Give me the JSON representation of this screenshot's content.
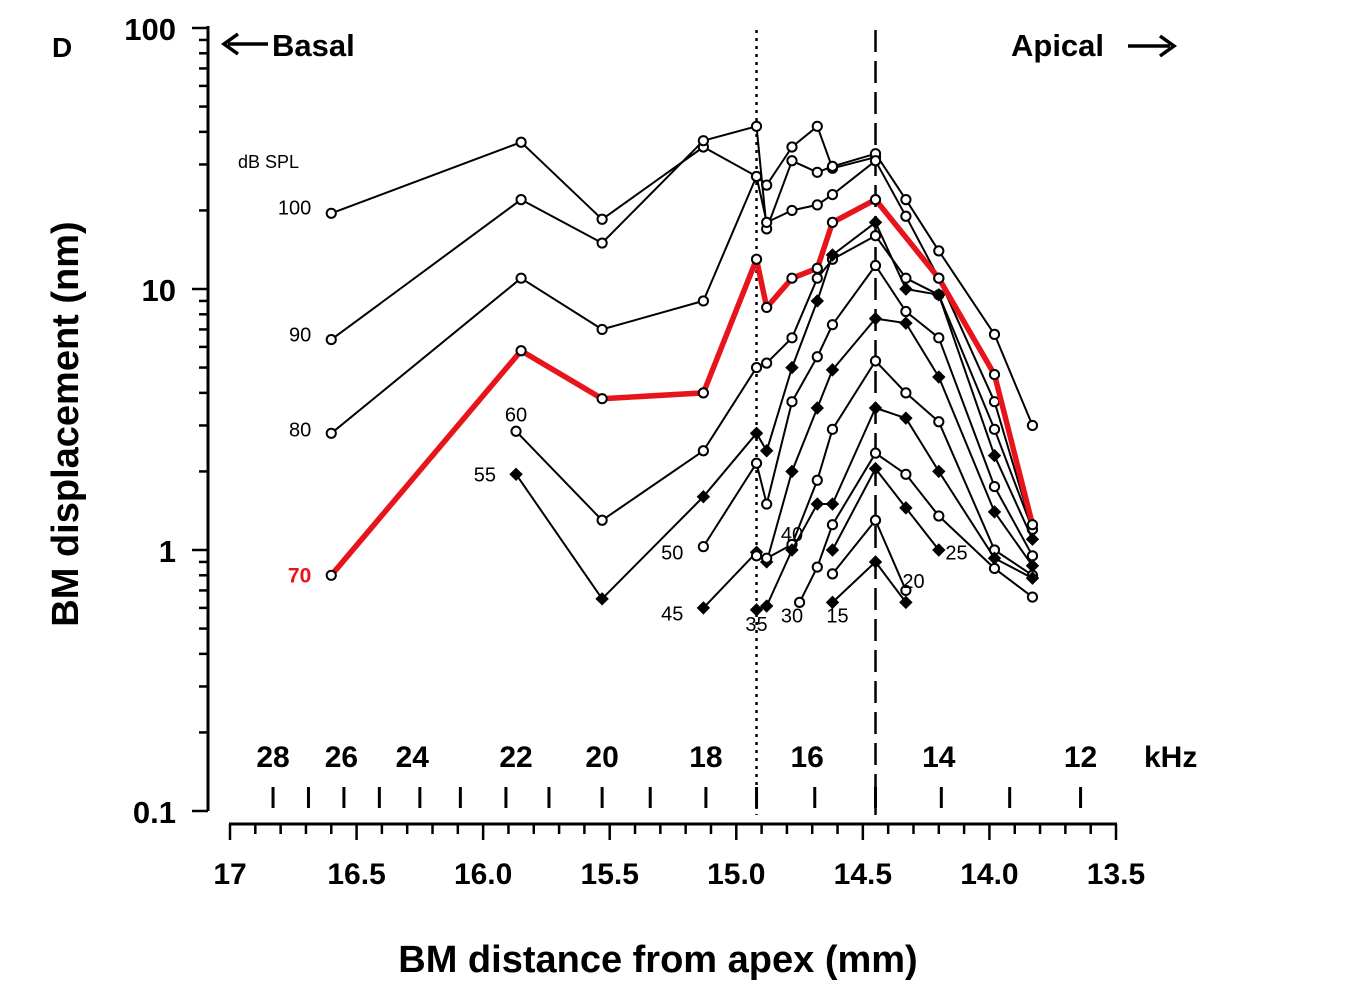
{
  "chart_data": {
    "type": "line",
    "panel_label": "D",
    "xlabel": "BM distance from apex (mm)",
    "ylabel": "BM displacement (nm)",
    "x_direction": "reversed",
    "xlim": [
      17.0,
      13.5
    ],
    "ylim": [
      0.1,
      100
    ],
    "y_scale": "log",
    "x_ticks": [
      "17",
      "16.5",
      "16.0",
      "15.5",
      "15.0",
      "14.5",
      "14.0",
      "13.5"
    ],
    "y_ticks": [
      "0.1",
      "1",
      "10",
      "100"
    ],
    "basal_label": "Basal",
    "apical_label": "Apical",
    "level_header": "dB SPL",
    "highlight_level": "70",
    "highlight_color": "#e8141b",
    "freq_axis": {
      "unit": "kHz",
      "labels": [
        {
          "text": "28",
          "x": 16.83
        },
        {
          "text": "26",
          "x": 16.56
        },
        {
          "text": "24",
          "x": 16.28
        },
        {
          "text": "22",
          "x": 15.87
        },
        {
          "text": "20",
          "x": 15.53
        },
        {
          "text": "18",
          "x": 15.12
        },
        {
          "text": "16",
          "x": 14.72
        },
        {
          "text": "14",
          "x": 14.2
        },
        {
          "text": "12",
          "x": 13.64
        }
      ],
      "ticks": [
        16.83,
        16.69,
        16.55,
        16.41,
        16.25,
        16.09,
        15.91,
        15.74,
        15.53,
        15.34,
        15.12,
        14.92,
        14.69,
        14.45,
        14.19,
        13.92,
        13.64
      ]
    },
    "ref_lines": [
      {
        "style": "dotted",
        "x": 14.92
      },
      {
        "style": "dashed",
        "x": 14.45
      }
    ],
    "series": [
      {
        "name": "100",
        "marker": "circle",
        "x": [
          16.6,
          15.85,
          15.53,
          15.13,
          14.92,
          14.88,
          14.78,
          14.68,
          14.62,
          14.45
        ],
        "y": [
          19.5,
          36.5,
          18.5,
          35,
          27,
          25,
          35,
          42,
          29,
          32
        ]
      },
      {
        "name": "90",
        "marker": "circle",
        "x": [
          16.6,
          15.85,
          15.53,
          15.13,
          14.92,
          14.88,
          14.78,
          14.68,
          14.62,
          14.45,
          14.33,
          14.2,
          13.98,
          13.83
        ],
        "y": [
          6.4,
          22,
          15,
          37,
          42,
          17,
          31,
          28,
          29.5,
          33,
          22,
          14,
          6.7,
          3.0
        ]
      },
      {
        "name": "80",
        "marker": "circle",
        "x": [
          16.6,
          15.85,
          15.53,
          15.13,
          14.92,
          14.88,
          14.78,
          14.68,
          14.62,
          14.45,
          14.33,
          14.2,
          13.98,
          13.83
        ],
        "y": [
          2.8,
          11,
          7,
          9,
          27,
          18,
          20,
          21,
          23,
          31,
          19,
          11,
          3.7,
          1.2
        ]
      },
      {
        "name": "70",
        "marker": "circle",
        "highlight": true,
        "x": [
          16.6,
          15.85,
          15.53,
          15.13,
          14.92,
          14.88,
          14.78,
          14.68,
          14.62,
          14.45,
          14.2,
          13.98,
          13.83
        ],
        "y": [
          0.8,
          5.8,
          3.8,
          4.0,
          13,
          8.5,
          11,
          12,
          18,
          22,
          11,
          4.7,
          1.25
        ]
      },
      {
        "name": "60",
        "marker": "circle",
        "x": [
          15.87,
          15.53,
          15.13,
          14.92,
          14.88,
          14.78,
          14.68,
          14.62,
          14.45,
          14.33,
          14.2,
          13.98,
          13.83
        ],
        "y": [
          2.85,
          1.3,
          2.4,
          5.0,
          5.2,
          6.5,
          11,
          13,
          16,
          11,
          9.5,
          2.9,
          1.2
        ]
      },
      {
        "name": "55",
        "marker": "diamond",
        "x": [
          15.87,
          15.53,
          15.13,
          14.92,
          14.88,
          14.78,
          14.68,
          14.62,
          14.45,
          14.33,
          14.2,
          13.98,
          13.83
        ],
        "y": [
          1.95,
          0.65,
          1.6,
          2.8,
          2.4,
          5.0,
          9.0,
          13.5,
          18,
          10,
          9.5,
          2.3,
          1.1
        ]
      },
      {
        "name": "50",
        "marker": "circle",
        "x": [
          15.13,
          14.92,
          14.88,
          14.78,
          14.68,
          14.62,
          14.45,
          14.33,
          14.2,
          13.98,
          13.83
        ],
        "y": [
          1.03,
          2.15,
          1.5,
          3.7,
          5.5,
          7.3,
          12.3,
          8.2,
          6.5,
          1.75,
          0.95
        ]
      },
      {
        "name": "45",
        "marker": "diamond",
        "x": [
          15.13,
          14.92,
          14.88,
          14.78,
          14.68,
          14.62,
          14.45,
          14.33,
          14.2,
          13.98,
          13.83
        ],
        "y": [
          0.6,
          0.98,
          0.9,
          2.0,
          3.5,
          4.9,
          7.7,
          7.4,
          4.6,
          1.4,
          0.87
        ]
      },
      {
        "name": "40",
        "marker": "circle",
        "x": [
          14.92,
          14.88,
          14.78,
          14.68,
          14.62,
          14.45,
          14.33,
          14.2,
          13.98,
          13.83
        ],
        "y": [
          0.95,
          0.93,
          1.05,
          1.85,
          2.9,
          5.3,
          4.0,
          3.1,
          1.0,
          0.8
        ]
      },
      {
        "name": "35",
        "marker": "diamond",
        "x": [
          14.92,
          14.88,
          14.78,
          14.68,
          14.62,
          14.45,
          14.33,
          14.2,
          13.98,
          13.83
        ],
        "y": [
          0.59,
          0.61,
          1.0,
          1.5,
          1.5,
          3.5,
          3.2,
          2.0,
          0.93,
          0.78
        ]
      },
      {
        "name": "30",
        "marker": "circle",
        "x": [
          14.75,
          14.68,
          14.62,
          14.45,
          14.33,
          14.2,
          13.98,
          13.83
        ],
        "y": [
          0.63,
          0.86,
          1.25,
          2.35,
          1.95,
          1.35,
          0.85,
          0.66
        ]
      },
      {
        "name": "25",
        "marker": "diamond",
        "x": [
          14.62,
          14.45,
          14.33,
          14.2
        ],
        "y": [
          1.0,
          2.05,
          1.45,
          1.0
        ]
      },
      {
        "name": "20",
        "marker": "circle",
        "x": [
          14.62,
          14.45,
          14.33
        ],
        "y": [
          0.81,
          1.3,
          0.7
        ]
      },
      {
        "name": "15",
        "marker": "diamond",
        "x": [
          14.62,
          14.45,
          14.33
        ],
        "y": [
          0.63,
          0.9,
          0.63
        ]
      }
    ],
    "level_labels": [
      {
        "text": "100",
        "x": 16.6,
        "y": 20.5,
        "side": "left"
      },
      {
        "text": "90",
        "x": 16.6,
        "y": 6.7,
        "side": "left"
      },
      {
        "text": "80",
        "x": 16.6,
        "y": 2.9,
        "side": "left"
      },
      {
        "text": "70",
        "x": 16.6,
        "y": 0.8,
        "side": "left",
        "highlight": true
      },
      {
        "text": "60",
        "x": 15.87,
        "y": 3.3,
        "side": "center"
      },
      {
        "text": "55",
        "x": 15.87,
        "y": 1.95,
        "side": "left"
      },
      {
        "text": "50",
        "x": 15.13,
        "y": 0.98,
        "side": "left"
      },
      {
        "text": "45",
        "x": 15.13,
        "y": 0.57,
        "side": "left"
      },
      {
        "text": "40",
        "x": 14.78,
        "y": 1.15,
        "side": "center"
      },
      {
        "text": "35",
        "x": 14.92,
        "y": 0.52,
        "side": "center"
      },
      {
        "text": "30",
        "x": 14.78,
        "y": 0.56,
        "side": "center"
      },
      {
        "text": "25",
        "x": 14.13,
        "y": 0.98,
        "side": "center"
      },
      {
        "text": "20",
        "x": 14.3,
        "y": 0.76,
        "side": "center"
      },
      {
        "text": "15",
        "x": 14.6,
        "y": 0.56,
        "side": "center"
      }
    ]
  }
}
